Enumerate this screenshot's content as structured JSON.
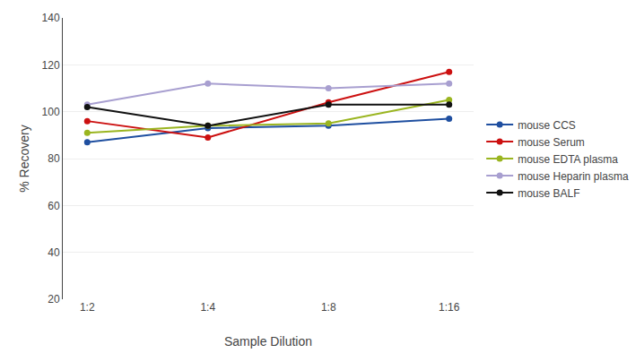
{
  "chart_data": {
    "type": "line",
    "categories": [
      "1:2",
      "1:4",
      "1:8",
      "1:16"
    ],
    "series": [
      {
        "name": "mouse CCS",
        "color": "#1f4fa0",
        "values": [
          87,
          93,
          94,
          97
        ]
      },
      {
        "name": "mouse Serum",
        "color": "#cc1010",
        "values": [
          96,
          89,
          104,
          117
        ]
      },
      {
        "name": "mouse EDTA plasma",
        "color": "#9ab520",
        "values": [
          91,
          94,
          95,
          105
        ]
      },
      {
        "name": "mouse Heparin plasma",
        "color": "#a89fd0",
        "values": [
          103,
          112,
          110,
          112
        ]
      },
      {
        "name": "mouse BALF",
        "color": "#111111",
        "values": [
          102,
          94,
          103,
          103
        ]
      }
    ],
    "xlabel": "Sample Dilution",
    "ylabel": "% Recovery",
    "ylim": [
      20,
      140
    ],
    "yticks": [
      20,
      40,
      60,
      80,
      100,
      120,
      140
    ],
    "grid": true,
    "legend": "right",
    "marker": "circle"
  }
}
